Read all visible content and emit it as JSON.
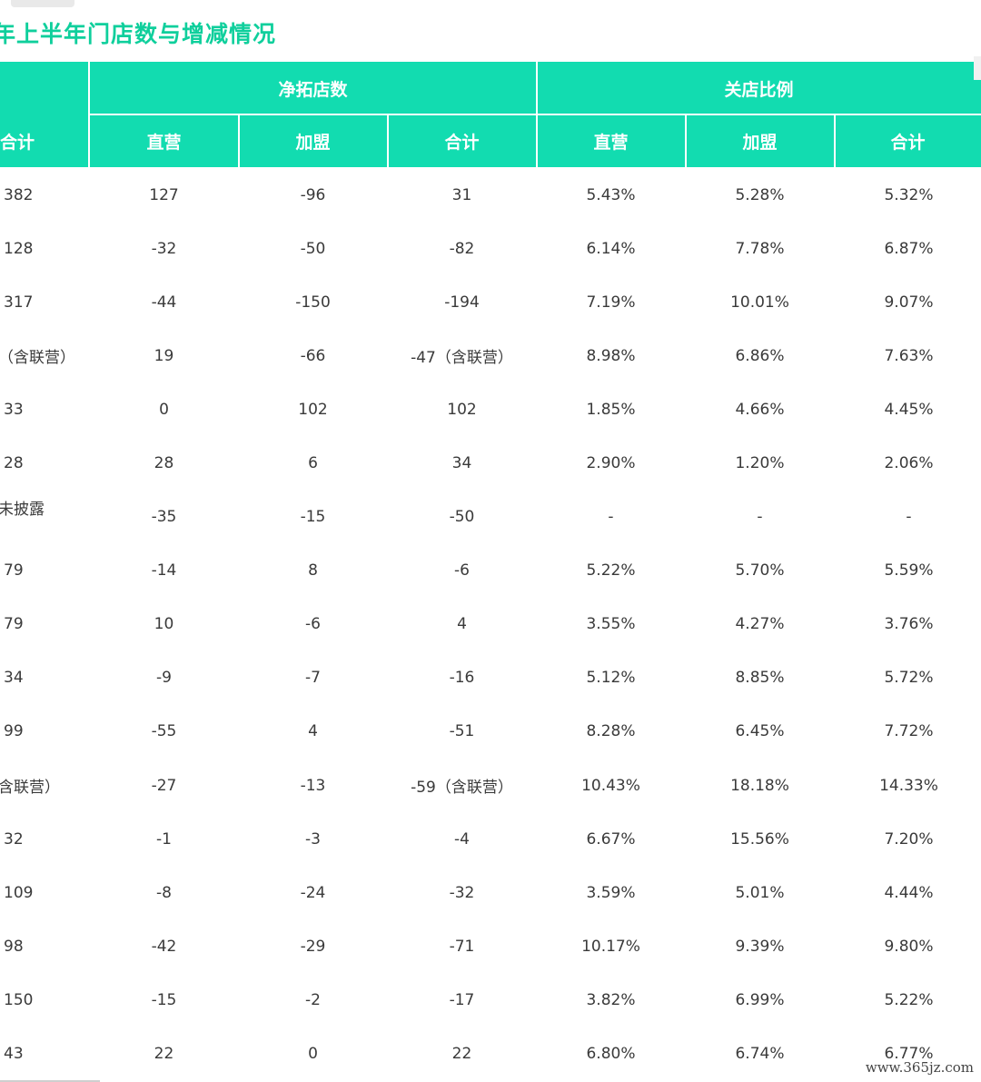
{
  "title": "年上半年门店数与增减情况",
  "header": {
    "group_net": "净拓店数",
    "group_close": "关店比例",
    "col_total_left": "合计",
    "col_direct": "直营",
    "col_franchise": "加盟",
    "col_total": "合计",
    "col_close_direct": "直营",
    "col_close_franchise": "加盟",
    "col_close_total": "合计"
  },
  "rows": [
    [
      "382",
      "127",
      "-96",
      "31",
      "5.43%",
      "5.28%",
      "5.32%"
    ],
    [
      "128",
      "-32",
      "-50",
      "-82",
      "6.14%",
      "7.78%",
      "6.87%"
    ],
    [
      "317",
      "-44",
      "-150",
      "-194",
      "7.19%",
      "10.01%",
      "9.07%"
    ],
    [
      "（含联营）",
      "19",
      "-66",
      "-47（含联营）",
      "8.98%",
      "6.86%",
      "7.63%"
    ],
    [
      "33",
      "0",
      "102",
      "102",
      "1.85%",
      "4.66%",
      "4.45%"
    ],
    [
      "28",
      "28",
      "6",
      "34",
      "2.90%",
      "1.20%",
      "2.06%"
    ],
    [
      "未披露",
      "-35",
      "-15",
      "-50",
      "-",
      "-",
      "-"
    ],
    [
      "79",
      "-14",
      "8",
      "-6",
      "5.22%",
      "5.70%",
      "5.59%"
    ],
    [
      "79",
      "10",
      "-6",
      "4",
      "3.55%",
      "4.27%",
      "3.76%"
    ],
    [
      "34",
      "-9",
      "-7",
      "-16",
      "5.12%",
      "8.85%",
      "5.72%"
    ],
    [
      "99",
      "-55",
      "4",
      "-51",
      "8.28%",
      "6.45%",
      "7.72%"
    ],
    [
      "含联营）",
      "-27",
      "-13",
      "-59（含联营）",
      "10.43%",
      "18.18%",
      "14.33%"
    ],
    [
      "32",
      "-1",
      "-3",
      "-4",
      "6.67%",
      "15.56%",
      "7.20%"
    ],
    [
      "109",
      "-8",
      "-24",
      "-32",
      "3.59%",
      "5.01%",
      "4.44%"
    ],
    [
      "98",
      "-42",
      "-29",
      "-71",
      "10.17%",
      "9.39%",
      "9.80%"
    ],
    [
      "150",
      "-15",
      "-2",
      "-17",
      "3.82%",
      "6.99%",
      "5.22%"
    ],
    [
      "43",
      "22",
      "0",
      "22",
      "6.80%",
      "6.74%",
      "6.77%"
    ]
  ],
  "footer_watermark": "www.365jz.com"
}
